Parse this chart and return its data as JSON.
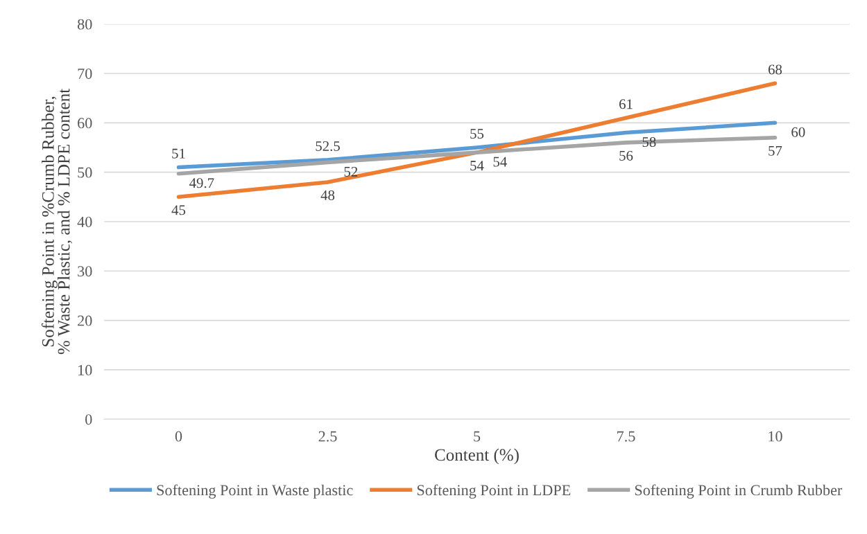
{
  "chart_data": {
    "type": "line",
    "xlabel": "Content (%)",
    "ylabel": "Softening Point in %Crumb Rubber, % Waste Plastic, and % LDPE content",
    "categories": [
      "0",
      "2.5",
      "5",
      "7.5",
      "10"
    ],
    "series": [
      {
        "name": "Softening Point in Waste plastic",
        "color": "#5b9bd5",
        "values": [
          51,
          52.5,
          55,
          58,
          60
        ]
      },
      {
        "name": "Softening Point in LDPE",
        "color": "#ed7d31",
        "values": [
          45,
          48,
          54,
          61,
          68
        ]
      },
      {
        "name": "Softening Point in Crumb Rubber",
        "color": "#a5a5a5",
        "values": [
          49.7,
          52,
          54,
          56,
          57
        ]
      }
    ],
    "ylim": [
      0,
      80
    ],
    "yticks": [
      0,
      10,
      20,
      30,
      40,
      50,
      60,
      70,
      80
    ],
    "grid": "y",
    "legend": "bottom",
    "data_labels": true,
    "marker": "none",
    "line_style": "solid"
  }
}
